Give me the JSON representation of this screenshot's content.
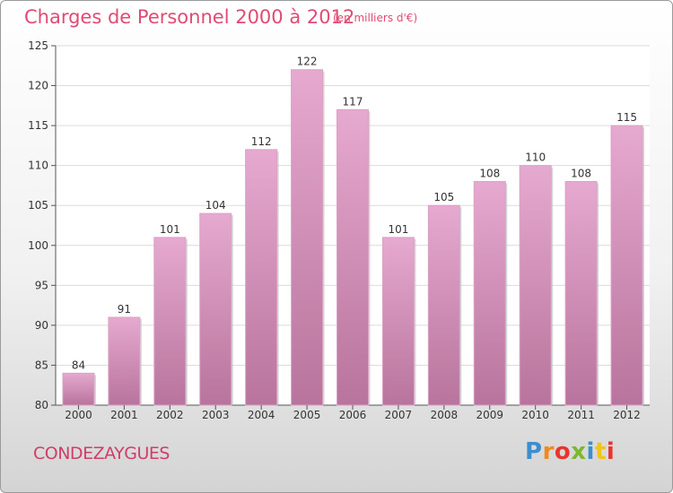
{
  "header": {
    "title": "Charges de Personnel 2000 à 2012",
    "subtitle": "(en milliers d'€)"
  },
  "commune": "CONDEZAYGUES",
  "logo": {
    "text": "Proxiti",
    "letters": [
      {
        "char": "P",
        "color": "#3a8fd0"
      },
      {
        "char": "r",
        "color": "#f08a1c"
      },
      {
        "char": "o",
        "color": "#e8352f"
      },
      {
        "char": "x",
        "color": "#7cb82f"
      },
      {
        "char": "i",
        "color": "#3a8fd0"
      },
      {
        "char": "t",
        "color": "#f0c419"
      },
      {
        "char": "i",
        "color": "#e8352f"
      }
    ]
  },
  "colors": {
    "bar_light": "#e6a9cf",
    "bar_dark": "#b8749c",
    "accent": "#e04b74"
  },
  "chart_data": {
    "type": "bar",
    "title": "Charges de Personnel 2000 à 2012",
    "subtitle": "(en milliers d'€)",
    "categories": [
      "2000",
      "2001",
      "2002",
      "2003",
      "2004",
      "2005",
      "2006",
      "2007",
      "2008",
      "2009",
      "2010",
      "2011",
      "2012"
    ],
    "values": [
      84,
      91,
      101,
      104,
      112,
      122,
      117,
      101,
      105,
      108,
      110,
      108,
      115
    ],
    "ylim": [
      80,
      125
    ],
    "yticks": [
      80,
      85,
      90,
      95,
      100,
      105,
      110,
      115,
      120,
      125
    ],
    "grid": true,
    "legend": "none"
  }
}
